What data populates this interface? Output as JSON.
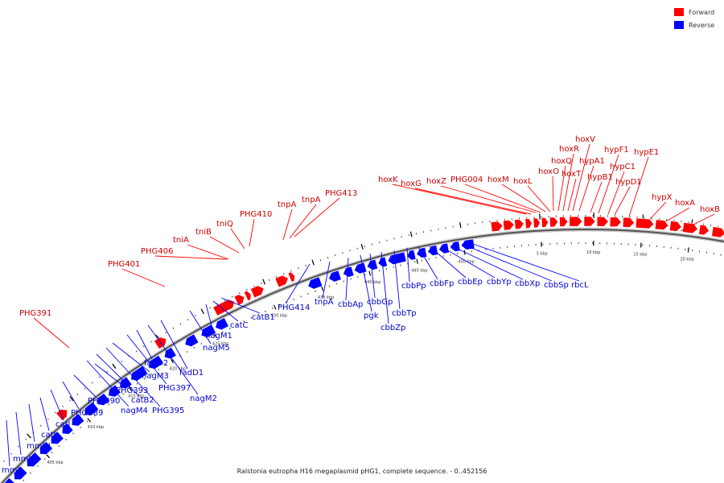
{
  "caption": "Ralstonia eutropha H16 megaplasmid pHG1, complete sequence. - 0..452156",
  "legend": [
    {
      "label": "Forward",
      "color": "#ff0000"
    },
    {
      "label": "Reverse",
      "color": "#0000ff"
    }
  ],
  "colors": {
    "forward": "#ff0000",
    "reverse": "#0000ff",
    "backbone": "#555555"
  },
  "scale_labels": [
    "405 kbp",
    "410 kbp",
    "415 kbp",
    "420 kbp",
    "425 kbp",
    "430 kbp",
    "435 kbp",
    "440 kbp",
    "445 kbp",
    "450 kbp",
    "5 kbp",
    "10 kbp",
    "15 kbp",
    "20 kbp"
  ],
  "forward_genes": [
    "PHG391",
    "PHG401",
    "PHG406",
    "tniA",
    "tniB",
    "tniQ",
    "PHG410",
    "tnpA",
    "tnpA",
    "PHG413",
    "hoxK",
    "hoxG",
    "hoxZ",
    "PHG004",
    "hoxM",
    "hoxL",
    "hoxO",
    "hoxQ",
    "hoxR",
    "hoxT",
    "hoxV",
    "hypA1",
    "hypB1",
    "hypF1",
    "hypC1",
    "hypD1",
    "hypE1",
    "hypX",
    "hoxA",
    "hoxB"
  ],
  "reverse_genes": [
    "mmlJ",
    "mmlI",
    "mmlH",
    "catJ",
    "catI",
    "PHG389",
    "PHG390",
    "nagM4",
    "catB2",
    "PHG395",
    "PHG393",
    "nagM3",
    "PHG397",
    "fadD2",
    "nagM2",
    "fadD1",
    "nagM5",
    "nagM1",
    "catC",
    "catB1",
    "PHG414",
    "tnpA",
    "cbbAp",
    "pgk",
    "cbbGp",
    "cbbZp",
    "cbbTp",
    "cbbPp",
    "cbbFp",
    "cbbEp",
    "cbbYp",
    "cbbXp",
    "cbbSp",
    "rbcL"
  ]
}
